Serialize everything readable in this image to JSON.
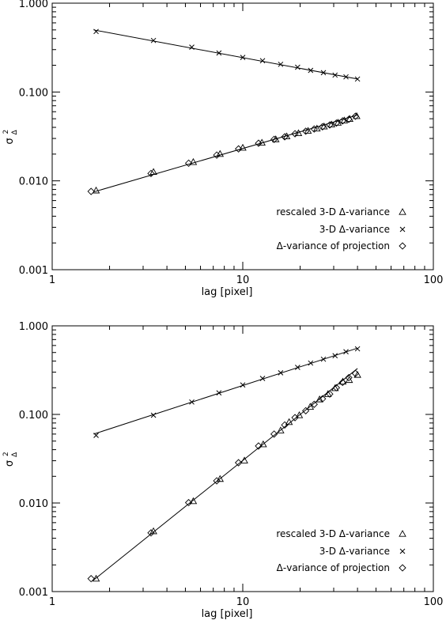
{
  "chart_data": [
    {
      "type": "scatter",
      "xscale": "log",
      "yscale": "log",
      "xlabel": "lag [pixel]",
      "ylabel": "σ",
      "ylabel_sub": "Δ",
      "ylabel_sup": "2",
      "xlim": [
        1,
        100
      ],
      "ylim": [
        0.001,
        1.0
      ],
      "x_ticks": [
        1,
        10,
        100
      ],
      "x_tick_labels": [
        "1",
        "10",
        "100"
      ],
      "y_ticks": [
        0.001,
        0.01,
        0.1,
        1.0
      ],
      "y_tick_labels": [
        "0.001",
        "0.010",
        "0.100",
        "1.000"
      ],
      "legend_position": "bottom-right",
      "series": [
        {
          "name": "rescaled 3-D Δ-variance",
          "marker": "triangle",
          "x": [
            1.7,
            3.4,
            5.5,
            7.6,
            10.0,
            12.6,
            14.9,
            17.0,
            19.6,
            22.0,
            24.5,
            26.7,
            29.2,
            31.6,
            34.1,
            36.4,
            39.6
          ],
          "y": [
            0.0078,
            0.0126,
            0.0163,
            0.0201,
            0.0236,
            0.0269,
            0.0294,
            0.0317,
            0.0344,
            0.0366,
            0.0388,
            0.041,
            0.0431,
            0.0452,
            0.0479,
            0.0498,
            0.0536
          ]
        },
        {
          "name": "3-D Δ-variance",
          "marker": "x",
          "x": [
            1.7,
            3.4,
            5.4,
            7.5,
            10.0,
            12.7,
            15.8,
            19.4,
            22.7,
            26.5,
            30.5,
            34.8,
            40.0
          ],
          "y": [
            0.48,
            0.38,
            0.32,
            0.275,
            0.245,
            0.225,
            0.205,
            0.19,
            0.175,
            0.165,
            0.155,
            0.148,
            0.14
          ]
        },
        {
          "name": "Δ-variance of projection",
          "marker": "diamond",
          "x": [
            1.6,
            3.3,
            5.2,
            7.3,
            9.5,
            12.1,
            14.6,
            16.6,
            18.8,
            21.4,
            23.7,
            26.2,
            28.6,
            31.0,
            33.4,
            36.0,
            39.0
          ],
          "y": [
            0.0076,
            0.0121,
            0.0158,
            0.0195,
            0.0229,
            0.0265,
            0.0293,
            0.0313,
            0.0339,
            0.0362,
            0.0383,
            0.0406,
            0.0426,
            0.0447,
            0.0473,
            0.0493,
            0.0533
          ]
        }
      ],
      "fit_lines": [
        {
          "x": [
            1.65,
            40.0
          ],
          "y": [
            0.0075,
            0.055
          ]
        },
        {
          "x": [
            1.65,
            40.0
          ],
          "y": [
            0.5,
            0.14
          ]
        }
      ]
    },
    {
      "type": "scatter",
      "xscale": "log",
      "yscale": "log",
      "xlabel": "lag [pixel]",
      "ylabel": "σ",
      "ylabel_sub": "Δ",
      "ylabel_sup": "2",
      "xlim": [
        1,
        100
      ],
      "ylim": [
        0.001,
        1.0
      ],
      "x_ticks": [
        1,
        10,
        100
      ],
      "x_tick_labels": [
        "1",
        "10",
        "100"
      ],
      "y_ticks": [
        0.001,
        0.01,
        0.1,
        1.0
      ],
      "y_tick_labels": [
        "0.001",
        "0.010",
        "0.100",
        "1.000"
      ],
      "legend_position": "bottom-right",
      "series": [
        {
          "name": "rescaled 3-D Δ-variance",
          "marker": "triangle",
          "x": [
            1.7,
            3.4,
            5.5,
            7.6,
            10.2,
            12.8,
            15.8,
            17.5,
            19.8,
            22.6,
            25.3,
            28.0,
            30.5,
            33.5,
            36.2,
            40.0
          ],
          "y": [
            0.0014,
            0.0048,
            0.0105,
            0.0187,
            0.0302,
            0.046,
            0.066,
            0.082,
            0.098,
            0.122,
            0.148,
            0.17,
            0.198,
            0.235,
            0.245,
            0.28
          ]
        },
        {
          "name": "3-D Δ-variance",
          "marker": "x",
          "x": [
            1.7,
            3.4,
            5.4,
            7.5,
            10.0,
            12.7,
            15.8,
            19.4,
            22.7,
            26.5,
            30.5,
            34.8,
            40.0
          ],
          "y": [
            0.058,
            0.098,
            0.138,
            0.175,
            0.215,
            0.255,
            0.295,
            0.34,
            0.38,
            0.42,
            0.46,
            0.51,
            0.55
          ]
        },
        {
          "name": "Δ-variance of projection",
          "marker": "diamond",
          "x": [
            1.6,
            3.3,
            5.2,
            7.3,
            9.5,
            12.1,
            14.6,
            16.6,
            18.8,
            21.4,
            23.7,
            26.2,
            28.6,
            31.0,
            33.4,
            36.0,
            39.0
          ],
          "y": [
            0.0014,
            0.0046,
            0.0101,
            0.0178,
            0.0285,
            0.044,
            0.06,
            0.076,
            0.092,
            0.11,
            0.13,
            0.15,
            0.17,
            0.2,
            0.23,
            0.26,
            0.29
          ]
        }
      ],
      "fit_lines": [
        {
          "x": [
            1.65,
            40.0
          ],
          "y": [
            0.00135,
            0.33
          ]
        },
        {
          "x": [
            1.65,
            40.0
          ],
          "y": [
            0.06,
            0.56
          ]
        }
      ]
    }
  ]
}
